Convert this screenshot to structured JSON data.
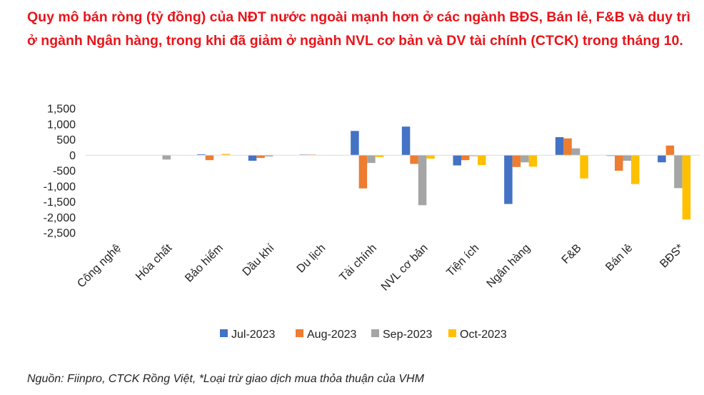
{
  "title": "Quy mô bán ròng (tỷ đồng) của NĐT nước ngoài mạnh hơn ở các ngành BĐS, Bán lẻ, F&B và duy trì ở ngành Ngân hàng, trong khi đã giảm ở ngành NVL cơ bản và DV tài chính (CTCK) trong tháng 10.",
  "source": "Nguồn: Fiinpro, CTCK Rồng Việt, *Loại trừ giao dịch mua thỏa thuận của VHM",
  "colors": {
    "jul": "#4472c4",
    "aug": "#ed7d31",
    "sep": "#a5a5a5",
    "oct": "#ffc000",
    "axis": "#d9d9d9",
    "text": "#404040"
  },
  "chart_data": {
    "type": "bar",
    "title": "",
    "xlabel": "",
    "ylabel": "",
    "ylim": [
      -2500,
      1500
    ],
    "yticks": [
      1500,
      1000,
      500,
      0,
      -500,
      -1000,
      -1500,
      -2000,
      -2500
    ],
    "ytick_labels": [
      "1,500",
      "1,000",
      "500",
      "0",
      "-500",
      "-1,000",
      "-1,500",
      "-2,000",
      "-2,500"
    ],
    "grid": false,
    "legend_position": "bottom",
    "categories": [
      "Công nghệ",
      "Hóa chất",
      "Bảo hiểm",
      "Dầu khí",
      "Du lịch",
      "Tài chính",
      "NVL cơ bản",
      "Tiện ích",
      "Ngân hàng",
      "F&B",
      "Bán lẻ",
      "BĐS*"
    ],
    "series": [
      {
        "name": "Jul-2023",
        "values": [
          0,
          0,
          30,
          -180,
          20,
          780,
          920,
          -330,
          -1570,
          580,
          -20,
          -230
        ]
      },
      {
        "name": "Aug-2023",
        "values": [
          0,
          0,
          -160,
          -90,
          20,
          -1070,
          -280,
          -160,
          -380,
          540,
          -500,
          310
        ]
      },
      {
        "name": "Sep-2023",
        "values": [
          0,
          -140,
          0,
          -40,
          0,
          -250,
          -1610,
          -30,
          -230,
          220,
          -180,
          -1060
        ]
      },
      {
        "name": "Oct-2023",
        "values": [
          0,
          0,
          40,
          0,
          0,
          -60,
          -110,
          -320,
          -370,
          -750,
          -930,
          -2070
        ]
      }
    ]
  }
}
